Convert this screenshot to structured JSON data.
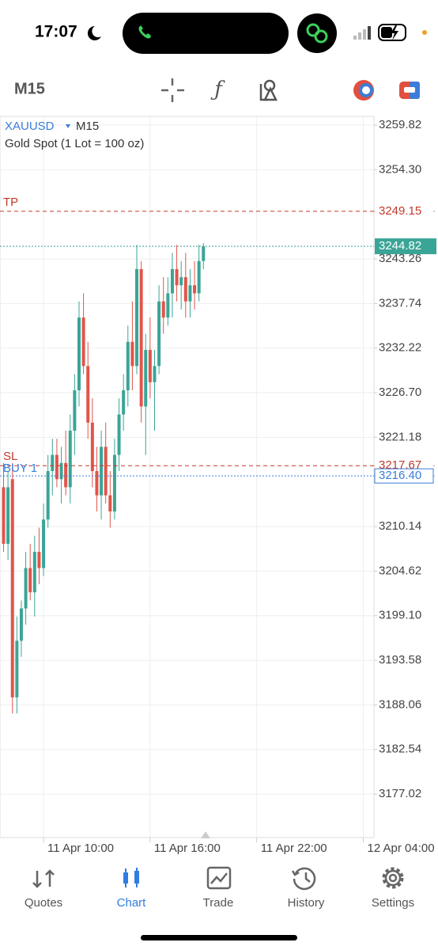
{
  "status_bar": {
    "time": "17:07"
  },
  "toolbar": {
    "timeframe": "M15"
  },
  "chart_data": {
    "type": "candlestick",
    "symbol": "XAUUSD",
    "timeframe": "M15",
    "description": "Gold Spot (1 Lot = 100 oz)",
    "up_color": "#3aa596",
    "down_color": "#e0554b",
    "grid": true,
    "x": [
      7.75,
      8,
      8.25,
      8.5,
      8.75,
      9,
      9.25,
      9.5,
      9.75,
      10,
      10.25,
      10.5,
      10.75,
      11,
      11.25,
      11.5,
      11.75,
      12,
      12.25,
      12.5,
      12.75,
      13,
      13.25,
      13.5,
      13.75,
      14,
      14.25,
      14.5,
      14.75,
      15,
      15.25,
      15.5,
      15.75,
      16,
      16.25,
      16.5,
      16.75,
      17,
      17.25,
      17.5,
      17.75,
      18,
      18.25,
      18.5,
      18.75,
      19
    ],
    "open": [
      3215,
      3208,
      3216,
      3189,
      3196,
      3200,
      3205,
      3202,
      3207,
      3205,
      3211,
      3217,
      3219,
      3216,
      3218,
      3215,
      3222,
      3227,
      3236,
      3230,
      3223,
      3217,
      3214,
      3220,
      3214,
      3212,
      3219,
      3224,
      3227,
      3233,
      3230,
      3242,
      3225,
      3232,
      3228,
      3230,
      3238,
      3236,
      3239,
      3242,
      3240,
      3241,
      3238,
      3240,
      3239,
      3243
    ],
    "high": [
      3218,
      3217,
      3218,
      3199,
      3201,
      3207,
      3208,
      3209,
      3210,
      3213,
      3219,
      3221,
      3221,
      3220,
      3222,
      3224,
      3229,
      3238,
      3239,
      3233,
      3226,
      3220,
      3222,
      3223,
      3217,
      3221,
      3226,
      3229,
      3235,
      3238,
      3245,
      3243,
      3234,
      3236,
      3232,
      3240,
      3241,
      3241,
      3244,
      3245,
      3243,
      3244,
      3242,
      3243,
      3245,
      3245.2
    ],
    "low": [
      3207,
      3206,
      3187,
      3187,
      3194,
      3198,
      3201,
      3199,
      3203,
      3204,
      3210,
      3214,
      3215,
      3213,
      3214,
      3213,
      3219,
      3225,
      3229,
      3221,
      3215,
      3212,
      3211,
      3213,
      3210,
      3211,
      3217,
      3222,
      3225,
      3227,
      3229,
      3223,
      3219,
      3226,
      3222,
      3229,
      3234,
      3235,
      3236,
      3238,
      3237,
      3236,
      3236,
      3237,
      3238,
      3242
    ],
    "close": [
      3208,
      3215,
      3189,
      3196,
      3200,
      3205,
      3202,
      3207,
      3205,
      3211,
      3217,
      3219,
      3216,
      3218,
      3215,
      3222,
      3227,
      3236,
      3230,
      3223,
      3217,
      3214,
      3220,
      3214,
      3212,
      3219,
      3224,
      3227,
      3233,
      3230,
      3242,
      3225,
      3232,
      3228,
      3230,
      3238,
      3236,
      3239,
      3242,
      3240,
      3241,
      3238,
      3240,
      3239,
      3243,
      3244.82
    ],
    "xlim": [
      7.55,
      28.6
    ],
    "xticks": [
      {
        "value": 10,
        "label": "11 Apr 10:00"
      },
      {
        "value": 16,
        "label": "11 Apr 16:00"
      },
      {
        "value": 22,
        "label": "11 Apr 22:00"
      },
      {
        "value": 28,
        "label": "12 Apr 04:00"
      }
    ],
    "ylim": [
      3171.64,
      3260.9
    ],
    "yticks": [
      3259.82,
      {
        "value": 3254.3,
        "label": "3254.30"
      },
      3243.26,
      3237.74,
      3232.22,
      {
        "value": 3226.7,
        "label": "3226.70"
      },
      3221.18,
      3210.14,
      3204.62,
      {
        "value": 3199.1,
        "label": "3199.10"
      },
      3193.58,
      3188.06,
      3182.54,
      3177.02
    ],
    "levels": [
      {
        "name": "TP",
        "value": 3249.15,
        "color": "#c0392b"
      },
      {
        "name": "SL",
        "value": 3217.67,
        "color": "#c0392b"
      },
      {
        "name": "BUY 1",
        "value": 3216.4,
        "label": "3216.40",
        "color": "#3b7dd8"
      }
    ],
    "last_price": 3244.82
  },
  "tab_bar": {
    "tabs": [
      "Quotes",
      "Chart",
      "Trade",
      "History",
      "Settings"
    ],
    "active": "Chart"
  }
}
